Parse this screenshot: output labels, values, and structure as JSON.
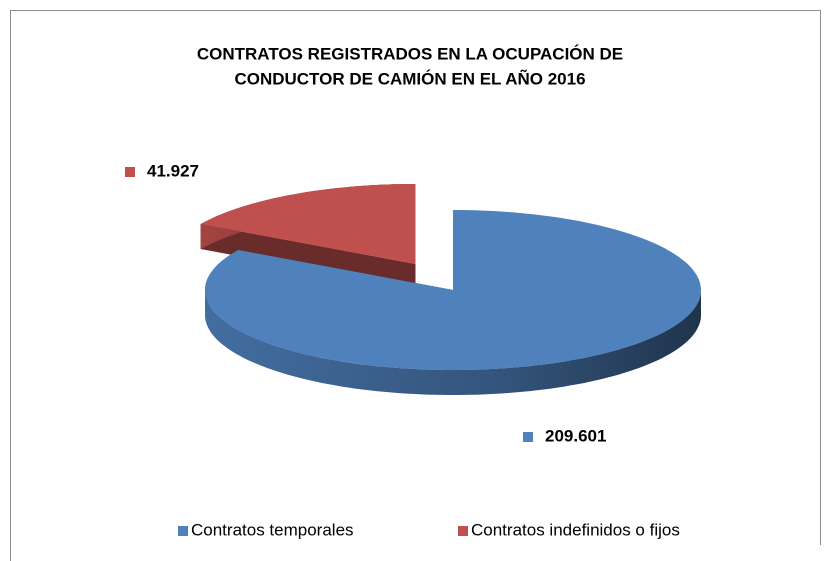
{
  "chart_data": {
    "type": "pie",
    "title": [
      "CONTRATOS REGISTRADOS EN LA OCUPACIÓN DE",
      "CONDUCTOR DE CAMIÓN EN EL AÑO 2016"
    ],
    "categories": [
      "Contratos temporales",
      "Contratos indefinidos o fijos"
    ],
    "values": [
      209601,
      41927
    ],
    "value_labels": [
      "209.601",
      "41.927"
    ],
    "colors": [
      "#4f81bd",
      "#c0504d"
    ],
    "legend": "bottom"
  }
}
